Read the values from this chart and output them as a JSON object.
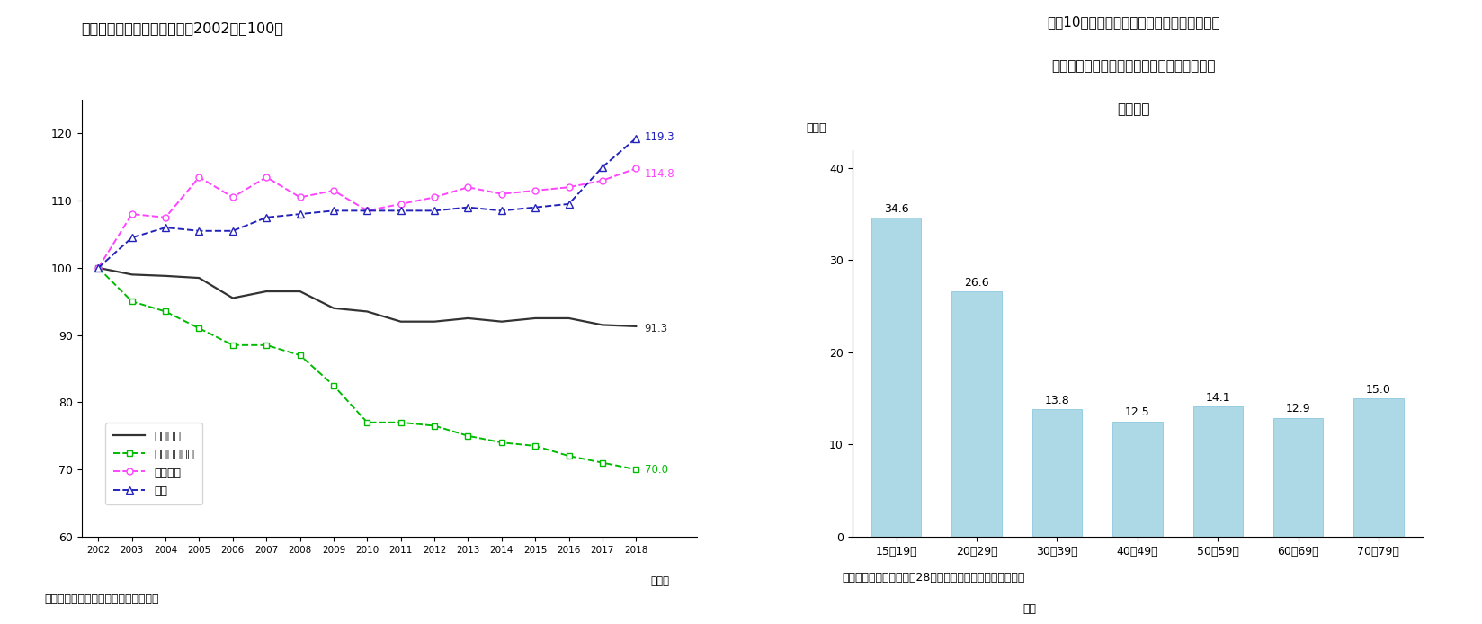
{
  "title1": "図表９　総世帯の消費支出（2002年＝100）",
  "title2_line1": "図表10　現在お金をかけているもののうち、",
  "title2_line2": "「スポーツ観戦・映画・コンサート鑑賞」の",
  "title2_line3": "選択割合",
  "source1": "（資料）総務省「家計調査」より作成",
  "source2_line1": "（資料）消費者庁「平成28年度消費者意識基本調査」より",
  "source2_line2": "作成",
  "years": [
    2002,
    2003,
    2004,
    2005,
    2006,
    2007,
    2008,
    2009,
    2010,
    2011,
    2012,
    2013,
    2014,
    2015,
    2016,
    2017,
    2018
  ],
  "year_label": "（年）",
  "consumption": [
    100,
    99.0,
    98.8,
    98.5,
    95.5,
    96.5,
    96.5,
    94.0,
    93.5,
    92.0,
    92.0,
    92.5,
    92.0,
    92.5,
    92.5,
    91.5,
    91.3
  ],
  "clothing": [
    100,
    95.0,
    93.5,
    91.0,
    88.5,
    88.5,
    87.0,
    82.5,
    77.0,
    77.0,
    76.5,
    75.0,
    74.0,
    73.5,
    72.0,
    71.0,
    70.0
  ],
  "health": [
    100,
    108.0,
    107.5,
    113.5,
    110.5,
    113.5,
    110.5,
    111.5,
    108.5,
    109.5,
    110.5,
    112.0,
    111.0,
    111.5,
    112.0,
    113.0,
    114.8
  ],
  "telecom": [
    100,
    104.5,
    106.0,
    105.5,
    105.5,
    107.5,
    108.0,
    108.5,
    108.5,
    108.5,
    108.5,
    109.0,
    108.5,
    109.0,
    109.5,
    115.0,
    119.3
  ],
  "consumption_end": "91.3",
  "clothing_end": "70.0",
  "health_end": "114.8",
  "telecom_end": "119.3",
  "line_colors": {
    "consumption": "#333333",
    "clothing": "#00bb00",
    "health": "#ff44ff",
    "telecom": "#2222bb"
  },
  "legend_labels": [
    "消費支出",
    "被服及び履物",
    "保健医療",
    "通信"
  ],
  "ylim1": [
    60,
    125
  ],
  "yticks1": [
    60,
    70,
    80,
    90,
    100,
    110,
    120
  ],
  "bar_categories": [
    "15～19歳",
    "20～29歳",
    "30～39歳",
    "40～49歳",
    "50～59歳",
    "60～69歳",
    "70～79歳"
  ],
  "bar_values": [
    34.6,
    26.6,
    13.8,
    12.5,
    14.1,
    12.9,
    15.0
  ],
  "bar_color": "#add8e6",
  "bar_edge_color": "#8ec8e0",
  "ylabel2": "（％）",
  "ylim2": [
    0,
    42
  ],
  "yticks2": [
    0,
    10,
    20,
    30,
    40
  ],
  "background_color": "#ffffff"
}
